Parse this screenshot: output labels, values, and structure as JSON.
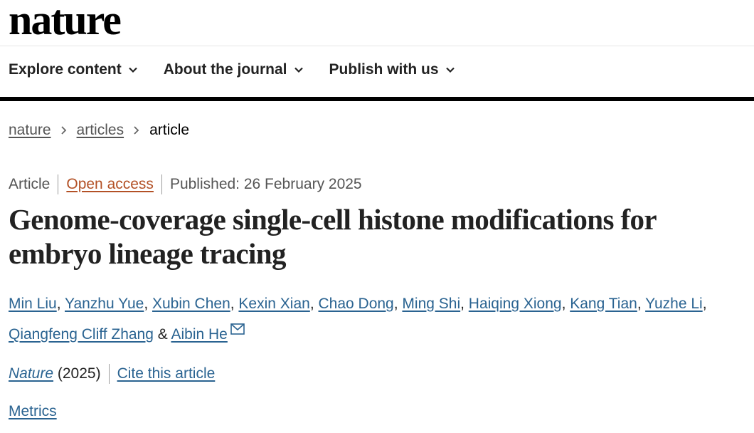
{
  "site": {
    "logo": "nature"
  },
  "nav": {
    "items": [
      {
        "label": "Explore content"
      },
      {
        "label": "About the journal"
      },
      {
        "label": "Publish with us"
      }
    ]
  },
  "breadcrumb": {
    "items": [
      "nature",
      "articles"
    ],
    "current": "article"
  },
  "article_meta": {
    "type": "Article",
    "access": "Open access",
    "published": "Published: 26 February 2025"
  },
  "article": {
    "title": "Genome-coverage single-cell histone modifications for embryo lineage tracing",
    "authors": [
      "Min Liu",
      "Yanzhu Yue",
      "Xubin Chen",
      "Kexin Xian",
      "Chao Dong",
      "Ming Shi",
      "Haiqing Xiong",
      "Kang Tian",
      "Yuzhe Li",
      "Qiangfeng Cliff Zhang",
      "Aibin He"
    ],
    "author_conjunction": "&",
    "journal": "Nature",
    "year": "(2025)",
    "cite_label": "Cite this article",
    "metrics_label": "Metrics"
  },
  "colors": {
    "link": "#2a6391",
    "open_access": "#b35126",
    "text": "#222222"
  },
  "icons": {
    "nav_chevron": "chevron-down-icon",
    "breadcrumb_separator": "chevron-right-icon",
    "corresponding_author": "mail-icon"
  }
}
